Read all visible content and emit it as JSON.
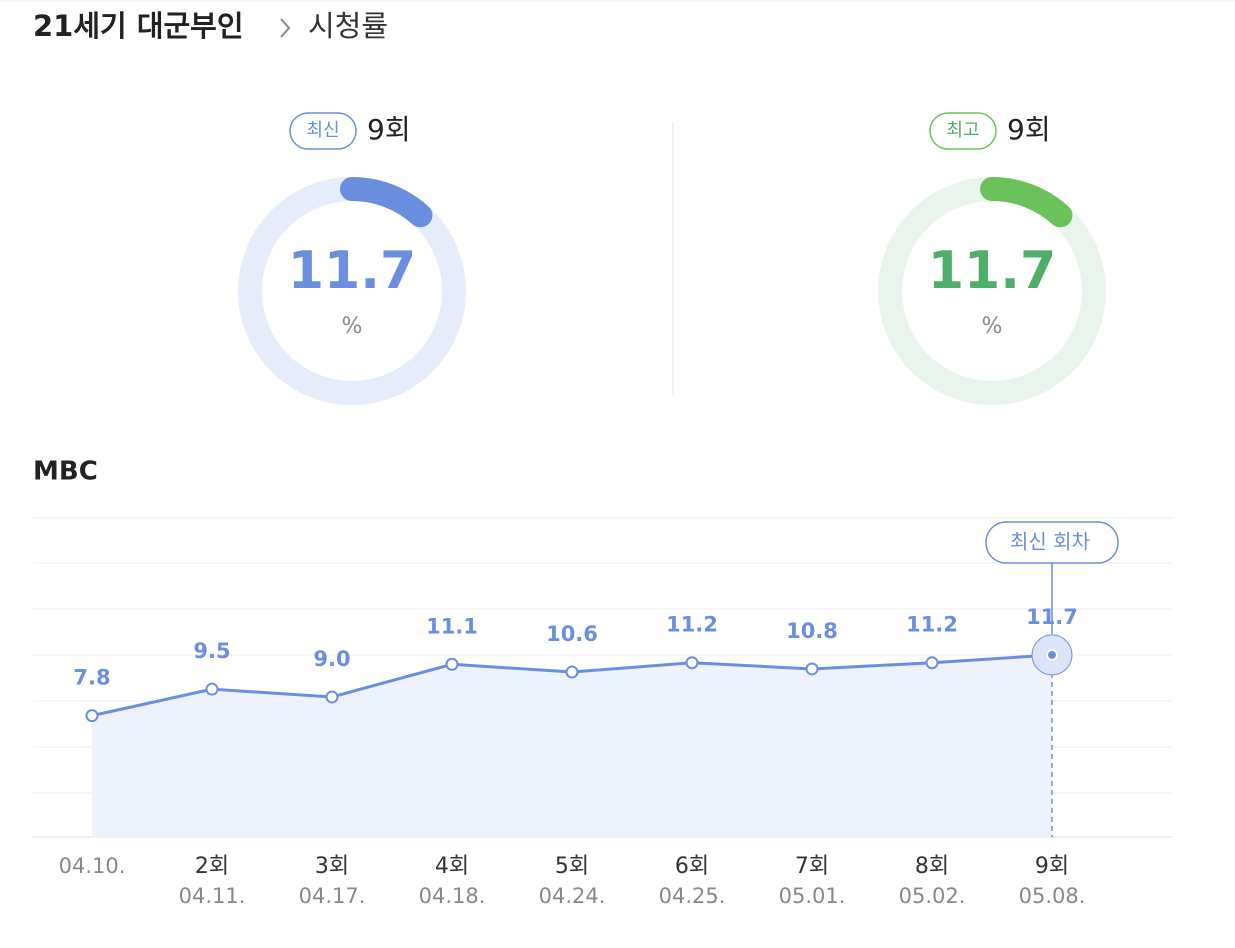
{
  "header": {
    "title": "21세기 대군부인",
    "subtitle": "시청률"
  },
  "gauges": [
    {
      "badge": "최신",
      "episode": "9회",
      "value": 11.7,
      "unit": "%",
      "color": "#6b8fe0",
      "value_color": "#6b8fe0",
      "track_color": "#e6ecf9"
    },
    {
      "badge": "최고",
      "episode": "9회",
      "value": 11.7,
      "unit": "%",
      "color": "#6cc25a",
      "value_color": "#4fae6a",
      "track_color": "#e9f5ec"
    }
  ],
  "chart_data": {
    "type": "line",
    "title": "MBC",
    "episodes": [
      null,
      "2회",
      "3회",
      "4회",
      "5회",
      "6회",
      "7회",
      "8회",
      "9회"
    ],
    "dates": [
      "04.10.",
      "04.11.",
      "04.17.",
      "04.18.",
      "04.24.",
      "04.25.",
      "05.01.",
      "05.02.",
      "05.08."
    ],
    "values": [
      7.8,
      9.5,
      9.0,
      11.1,
      10.6,
      11.2,
      10.8,
      11.2,
      11.7
    ],
    "value_labels": [
      "7.8",
      "9.5",
      "9.0",
      "11.1",
      "10.6",
      "11.2",
      "10.8",
      "11.2",
      "11.7"
    ],
    "color": "#6b8fe0",
    "ylim": [
      0,
      20.5
    ],
    "annotation": "최신 회차"
  }
}
